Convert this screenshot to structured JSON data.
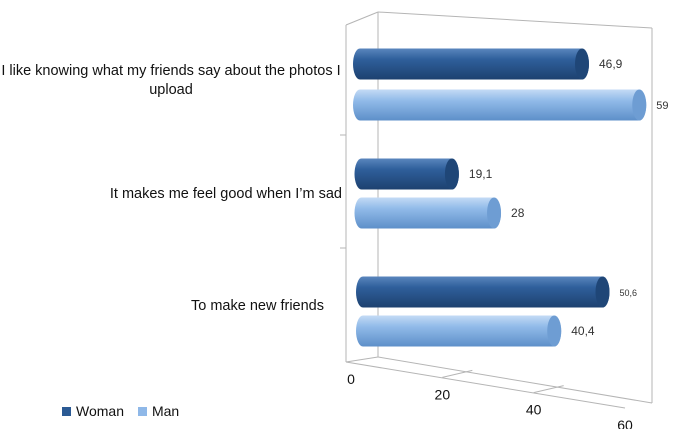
{
  "chart_data": {
    "type": "bar",
    "orientation": "horizontal",
    "style": "3d-cylinder",
    "categories": [
      "I like knowing what my friends say about the photos I upload",
      "It makes me feel good when I’m sad",
      "To make new friends"
    ],
    "series": [
      {
        "name": "Woman",
        "values": [
          46.9,
          19.1,
          50.6
        ],
        "labels": [
          "46,9",
          "19,1",
          "50,6"
        ]
      },
      {
        "name": "Man",
        "values": [
          59,
          28,
          40.4
        ],
        "labels": [
          "59",
          "28",
          "40,4"
        ]
      }
    ],
    "xlim": [
      0,
      60
    ],
    "xticks": [
      "0",
      "20",
      "40",
      "60"
    ],
    "grid": true,
    "legend": "bottom-left",
    "colors": {
      "Woman": "#2b5a94",
      "Man": "#8fb8e8",
      "grid": "#b5b5b5"
    }
  }
}
